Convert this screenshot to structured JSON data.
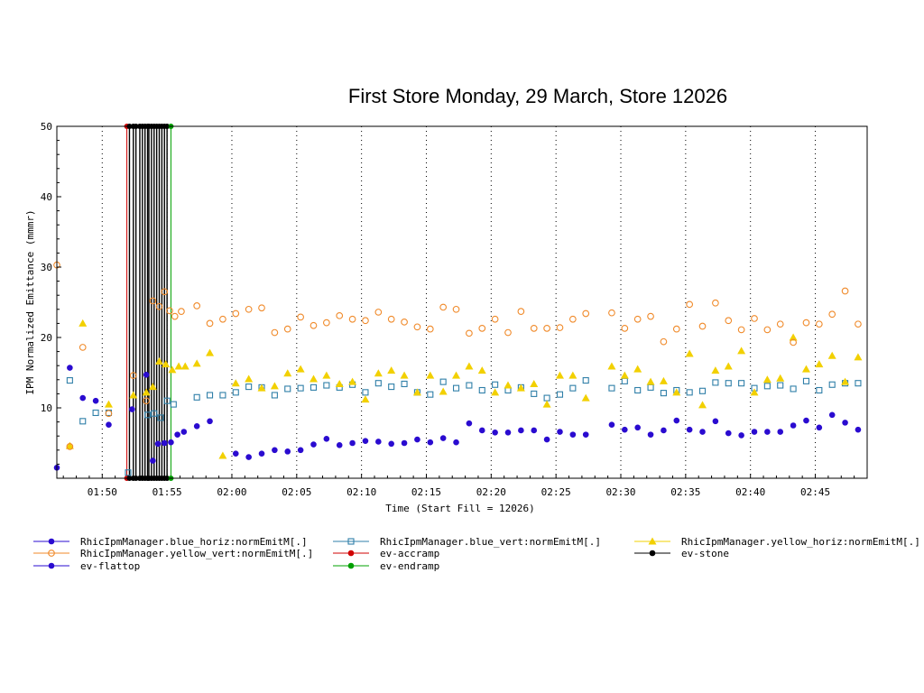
{
  "chart_data": {
    "type": "scatter",
    "title": "First Store Monday, 29 March, Store 12026",
    "xlabel": "Time (Start Fill = 12026)",
    "ylabel": "IPM Normalized Emittance (mmmr)",
    "xlim_minutes": [
      106.5,
      169
    ],
    "ylim": [
      0,
      50
    ],
    "x_ticks": [
      {
        "m": 110,
        "label": "01:50"
      },
      {
        "m": 115,
        "label": "01:55"
      },
      {
        "m": 120,
        "label": "02:00"
      },
      {
        "m": 125,
        "label": "02:05"
      },
      {
        "m": 130,
        "label": "02:10"
      },
      {
        "m": 135,
        "label": "02:15"
      },
      {
        "m": 140,
        "label": "02:20"
      },
      {
        "m": 145,
        "label": "02:25"
      },
      {
        "m": 150,
        "label": "02:30"
      },
      {
        "m": 155,
        "label": "02:35"
      },
      {
        "m": 160,
        "label": "02:40"
      },
      {
        "m": 165,
        "label": "02:45"
      }
    ],
    "y_ticks": [
      10,
      20,
      30,
      40,
      50
    ],
    "grid": "vertical-dotted",
    "series": [
      {
        "name": "RhicIpmManager.blue_horiz:normEmitM[.]",
        "color": "#2a0bd0",
        "marker": "filled-circle",
        "legend_line": "#2a0bd0",
        "points": [
          [
            106.5,
            1.5
          ],
          [
            107.5,
            15.7
          ],
          [
            108.5,
            11.4
          ],
          [
            109.5,
            11.0
          ],
          [
            110.5,
            7.6
          ],
          [
            112.3,
            9.8
          ],
          [
            113.4,
            14.7
          ],
          [
            113.9,
            2.5
          ],
          [
            114.3,
            4.9
          ],
          [
            114.8,
            5.0
          ],
          [
            115.3,
            5.1
          ],
          [
            115.8,
            6.2
          ],
          [
            116.3,
            6.6
          ],
          [
            117.3,
            7.4
          ],
          [
            118.3,
            8.1
          ],
          [
            120.3,
            3.5
          ],
          [
            121.3,
            3.0
          ],
          [
            122.3,
            3.5
          ],
          [
            123.3,
            4.0
          ],
          [
            124.3,
            3.8
          ],
          [
            125.3,
            4.0
          ],
          [
            126.3,
            4.8
          ],
          [
            127.3,
            5.6
          ],
          [
            128.3,
            4.7
          ],
          [
            129.3,
            5.0
          ],
          [
            130.3,
            5.3
          ],
          [
            131.3,
            5.2
          ],
          [
            132.3,
            4.9
          ],
          [
            133.3,
            5.0
          ],
          [
            134.3,
            5.5
          ],
          [
            135.3,
            5.1
          ],
          [
            136.3,
            5.7
          ],
          [
            137.3,
            5.1
          ],
          [
            138.3,
            7.8
          ],
          [
            139.3,
            6.8
          ],
          [
            140.3,
            6.5
          ],
          [
            141.3,
            6.5
          ],
          [
            142.3,
            6.8
          ],
          [
            143.3,
            6.8
          ],
          [
            144.3,
            5.5
          ],
          [
            145.3,
            6.6
          ],
          [
            146.3,
            6.2
          ],
          [
            147.3,
            6.2
          ],
          [
            149.3,
            7.6
          ],
          [
            150.3,
            6.9
          ],
          [
            151.3,
            7.2
          ],
          [
            152.3,
            6.2
          ],
          [
            153.3,
            6.8
          ],
          [
            154.3,
            8.2
          ],
          [
            155.3,
            6.9
          ],
          [
            156.3,
            6.6
          ],
          [
            157.3,
            8.1
          ],
          [
            158.3,
            6.4
          ],
          [
            159.3,
            6.1
          ],
          [
            160.3,
            6.6
          ],
          [
            161.3,
            6.6
          ],
          [
            162.3,
            6.6
          ],
          [
            163.3,
            7.5
          ],
          [
            164.3,
            8.2
          ],
          [
            165.3,
            7.2
          ],
          [
            166.3,
            9.0
          ],
          [
            167.3,
            7.9
          ],
          [
            168.3,
            6.9
          ]
        ]
      },
      {
        "name": "RhicIpmManager.blue_vert:normEmitM[.]",
        "color": "#2f7fa8",
        "marker": "open-square",
        "legend_line": "#2f7fa8",
        "points": [
          [
            107.5,
            13.9
          ],
          [
            108.5,
            8.1
          ],
          [
            109.5,
            9.3
          ],
          [
            110.5,
            9.3
          ],
          [
            112.0,
            0.8
          ],
          [
            113.5,
            9.0
          ],
          [
            114.0,
            9.2
          ],
          [
            114.5,
            8.6
          ],
          [
            115.0,
            11.0
          ],
          [
            115.5,
            10.5
          ],
          [
            117.3,
            11.5
          ],
          [
            118.3,
            11.8
          ],
          [
            119.3,
            11.8
          ],
          [
            120.3,
            12.2
          ],
          [
            121.3,
            13.0
          ],
          [
            122.3,
            12.9
          ],
          [
            123.3,
            11.8
          ],
          [
            124.3,
            12.7
          ],
          [
            125.3,
            12.8
          ],
          [
            126.3,
            12.9
          ],
          [
            127.3,
            13.2
          ],
          [
            128.3,
            12.9
          ],
          [
            129.3,
            13.3
          ],
          [
            130.3,
            12.2
          ],
          [
            131.3,
            13.5
          ],
          [
            132.3,
            13.0
          ],
          [
            133.3,
            13.4
          ],
          [
            134.3,
            12.2
          ],
          [
            135.3,
            11.9
          ],
          [
            136.3,
            13.7
          ],
          [
            137.3,
            12.8
          ],
          [
            138.3,
            13.2
          ],
          [
            139.3,
            12.5
          ],
          [
            140.3,
            13.3
          ],
          [
            141.3,
            12.5
          ],
          [
            142.3,
            12.9
          ],
          [
            143.3,
            12.0
          ],
          [
            144.3,
            11.4
          ],
          [
            145.3,
            11.9
          ],
          [
            146.3,
            12.8
          ],
          [
            147.3,
            13.9
          ],
          [
            149.3,
            12.8
          ],
          [
            150.3,
            13.8
          ],
          [
            151.3,
            12.5
          ],
          [
            152.3,
            12.9
          ],
          [
            153.3,
            12.1
          ],
          [
            154.3,
            12.5
          ],
          [
            155.3,
            12.2
          ],
          [
            156.3,
            12.4
          ],
          [
            157.3,
            13.6
          ],
          [
            158.3,
            13.5
          ],
          [
            159.3,
            13.5
          ],
          [
            160.3,
            12.8
          ],
          [
            161.3,
            13.1
          ],
          [
            162.3,
            13.2
          ],
          [
            163.3,
            12.7
          ],
          [
            164.3,
            13.8
          ],
          [
            165.3,
            12.5
          ],
          [
            166.3,
            13.3
          ],
          [
            167.3,
            13.5
          ],
          [
            168.3,
            13.5
          ]
        ]
      },
      {
        "name": "RhicIpmManager.yellow_horiz:normEmitM[.]",
        "color": "#f2d000",
        "marker": "filled-triangle",
        "legend_line": "#f2d000",
        "points": [
          [
            107.5,
            4.6
          ],
          [
            108.5,
            22.0
          ],
          [
            110.5,
            10.5
          ],
          [
            112.4,
            11.8
          ],
          [
            113.4,
            12.2
          ],
          [
            113.9,
            13.0
          ],
          [
            114.4,
            16.6
          ],
          [
            114.9,
            16.2
          ],
          [
            115.4,
            15.4
          ],
          [
            115.9,
            15.9
          ],
          [
            116.4,
            15.9
          ],
          [
            117.3,
            16.3
          ],
          [
            118.3,
            17.8
          ],
          [
            119.3,
            3.2
          ],
          [
            120.3,
            13.5
          ],
          [
            121.3,
            14.1
          ],
          [
            122.3,
            12.8
          ],
          [
            123.3,
            13.1
          ],
          [
            124.3,
            14.9
          ],
          [
            125.3,
            15.5
          ],
          [
            126.3,
            14.1
          ],
          [
            127.3,
            14.6
          ],
          [
            128.3,
            13.4
          ],
          [
            129.3,
            13.7
          ],
          [
            130.3,
            11.2
          ],
          [
            131.3,
            14.9
          ],
          [
            132.3,
            15.3
          ],
          [
            133.3,
            14.6
          ],
          [
            134.3,
            12.2
          ],
          [
            135.3,
            14.6
          ],
          [
            136.3,
            12.3
          ],
          [
            137.3,
            14.6
          ],
          [
            138.3,
            15.9
          ],
          [
            139.3,
            15.3
          ],
          [
            140.3,
            12.2
          ],
          [
            141.3,
            13.2
          ],
          [
            142.3,
            12.8
          ],
          [
            143.3,
            13.4
          ],
          [
            144.3,
            10.5
          ],
          [
            145.3,
            14.6
          ],
          [
            146.3,
            14.6
          ],
          [
            147.3,
            11.4
          ],
          [
            149.3,
            15.9
          ],
          [
            150.3,
            14.6
          ],
          [
            151.3,
            15.5
          ],
          [
            152.3,
            13.7
          ],
          [
            153.3,
            13.8
          ],
          [
            154.3,
            12.2
          ],
          [
            155.3,
            17.7
          ],
          [
            156.3,
            10.4
          ],
          [
            157.3,
            15.3
          ],
          [
            158.3,
            15.9
          ],
          [
            159.3,
            18.1
          ],
          [
            160.3,
            12.2
          ],
          [
            161.3,
            14.0
          ],
          [
            162.3,
            14.2
          ],
          [
            163.3,
            20.0
          ],
          [
            164.3,
            15.5
          ],
          [
            165.3,
            16.2
          ],
          [
            166.3,
            17.4
          ],
          [
            167.3,
            13.7
          ],
          [
            168.3,
            17.2
          ]
        ]
      },
      {
        "name": "RhicIpmManager.yellow_vert:normEmitM[.]",
        "color": "#f08a2a",
        "marker": "open-circle",
        "legend_line": "#f08a2a",
        "points": [
          [
            106.5,
            30.3
          ],
          [
            107.5,
            4.5
          ],
          [
            108.5,
            18.6
          ],
          [
            110.5,
            9.2
          ],
          [
            112.4,
            14.6
          ],
          [
            113.4,
            11.0
          ],
          [
            113.9,
            25.2
          ],
          [
            114.4,
            24.4
          ],
          [
            114.8,
            26.5
          ],
          [
            115.2,
            23.8
          ],
          [
            115.6,
            23.0
          ],
          [
            116.1,
            23.7
          ],
          [
            117.3,
            24.5
          ],
          [
            118.3,
            22.0
          ],
          [
            119.3,
            22.6
          ],
          [
            120.3,
            23.4
          ],
          [
            121.3,
            24.0
          ],
          [
            122.3,
            24.2
          ],
          [
            123.3,
            20.7
          ],
          [
            124.3,
            21.2
          ],
          [
            125.3,
            22.9
          ],
          [
            126.3,
            21.7
          ],
          [
            127.3,
            22.1
          ],
          [
            128.3,
            23.1
          ],
          [
            129.3,
            22.6
          ],
          [
            130.3,
            22.4
          ],
          [
            131.3,
            23.6
          ],
          [
            132.3,
            22.6
          ],
          [
            133.3,
            22.2
          ],
          [
            134.3,
            21.5
          ],
          [
            135.3,
            21.2
          ],
          [
            136.3,
            24.3
          ],
          [
            137.3,
            24.0
          ],
          [
            138.3,
            20.6
          ],
          [
            139.3,
            21.3
          ],
          [
            140.3,
            22.6
          ],
          [
            141.3,
            20.7
          ],
          [
            142.3,
            23.7
          ],
          [
            143.3,
            21.3
          ],
          [
            144.3,
            21.3
          ],
          [
            145.3,
            21.4
          ],
          [
            146.3,
            22.6
          ],
          [
            147.3,
            23.4
          ],
          [
            149.3,
            23.5
          ],
          [
            150.3,
            21.3
          ],
          [
            151.3,
            22.6
          ],
          [
            152.3,
            23.0
          ],
          [
            153.3,
            19.4
          ],
          [
            154.3,
            21.2
          ],
          [
            155.3,
            24.7
          ],
          [
            156.3,
            21.6
          ],
          [
            157.3,
            24.9
          ],
          [
            158.3,
            22.4
          ],
          [
            159.3,
            21.1
          ],
          [
            160.3,
            22.7
          ],
          [
            161.3,
            21.1
          ],
          [
            162.3,
            21.9
          ],
          [
            163.3,
            19.3
          ],
          [
            164.3,
            22.1
          ],
          [
            165.3,
            21.9
          ],
          [
            166.3,
            23.3
          ],
          [
            167.3,
            26.6
          ],
          [
            168.3,
            21.9
          ]
        ]
      }
    ],
    "events": [
      {
        "name": "ev-accramp",
        "color": "#d00000",
        "xs": [
          111.9
        ]
      },
      {
        "name": "ev-stone",
        "color": "#000000",
        "xs": [
          112.1,
          112.4,
          112.6,
          112.9,
          113.1,
          113.3,
          113.5,
          113.6,
          113.8,
          114.0,
          114.2,
          114.4,
          114.6,
          114.8,
          115.0
        ]
      },
      {
        "name": "ev-endramp",
        "color": "#00a000",
        "xs": [
          115.3
        ]
      },
      {
        "name": "ev-flattop",
        "color": "#2a0bd0",
        "xs": []
      }
    ],
    "legend": [
      {
        "label": "RhicIpmManager.blue_horiz:normEmitM[.]",
        "color": "#2a0bd0",
        "marker": "filled-circle"
      },
      {
        "label": "RhicIpmManager.blue_vert:normEmitM[.]",
        "color": "#2f7fa8",
        "marker": "open-square"
      },
      {
        "label": "RhicIpmManager.yellow_horiz:normEmitM[.]",
        "color": "#f2d000",
        "marker": "filled-triangle"
      },
      {
        "label": "RhicIpmManager.yellow_vert:normEmitM[.]",
        "color": "#f08a2a",
        "marker": "open-circle"
      },
      {
        "label": "ev-accramp",
        "color": "#d00000",
        "marker": "filled-circle"
      },
      {
        "label": "ev-stone",
        "color": "#000000",
        "marker": "filled-circle"
      },
      {
        "label": "ev-flattop",
        "color": "#2a0bd0",
        "marker": "filled-circle"
      },
      {
        "label": "ev-endramp",
        "color": "#00a000",
        "marker": "filled-circle"
      }
    ]
  }
}
